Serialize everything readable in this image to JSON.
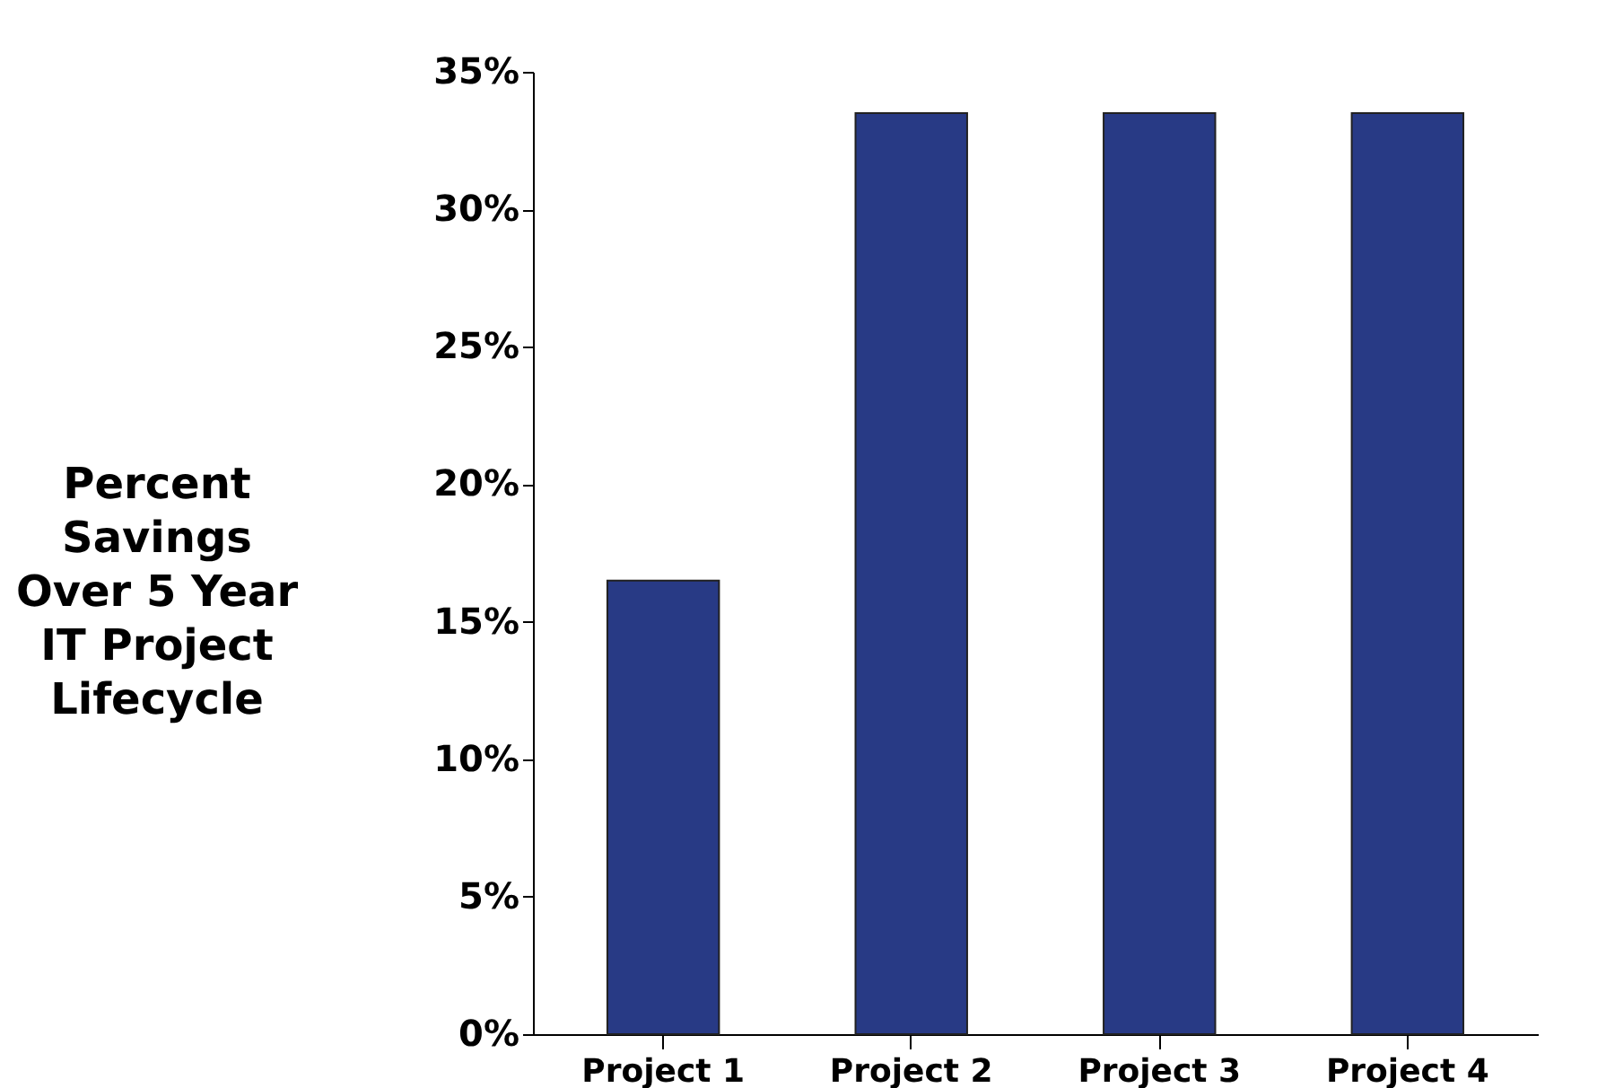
{
  "chart_data": {
    "type": "bar",
    "ylabel": "Percent\nSavings\nOver 5 Year\nIT Project\nLifecycle",
    "categories": [
      "Project 1",
      "Project 2",
      "Project 3",
      "Project 4"
    ],
    "values": [
      16.5,
      33.5,
      33.5,
      33.5
    ],
    "color": "#283a85",
    "ylim": [
      0,
      35
    ],
    "yticks": [
      {
        "value": 0,
        "label": "0%"
      },
      {
        "value": 5,
        "label": "5%"
      },
      {
        "value": 10,
        "label": "10%"
      },
      {
        "value": 15,
        "label": "15%"
      },
      {
        "value": 20,
        "label": "20%"
      },
      {
        "value": 25,
        "label": "25%"
      },
      {
        "value": 30,
        "label": "30%"
      },
      {
        "value": 35,
        "label": "35%"
      }
    ]
  }
}
